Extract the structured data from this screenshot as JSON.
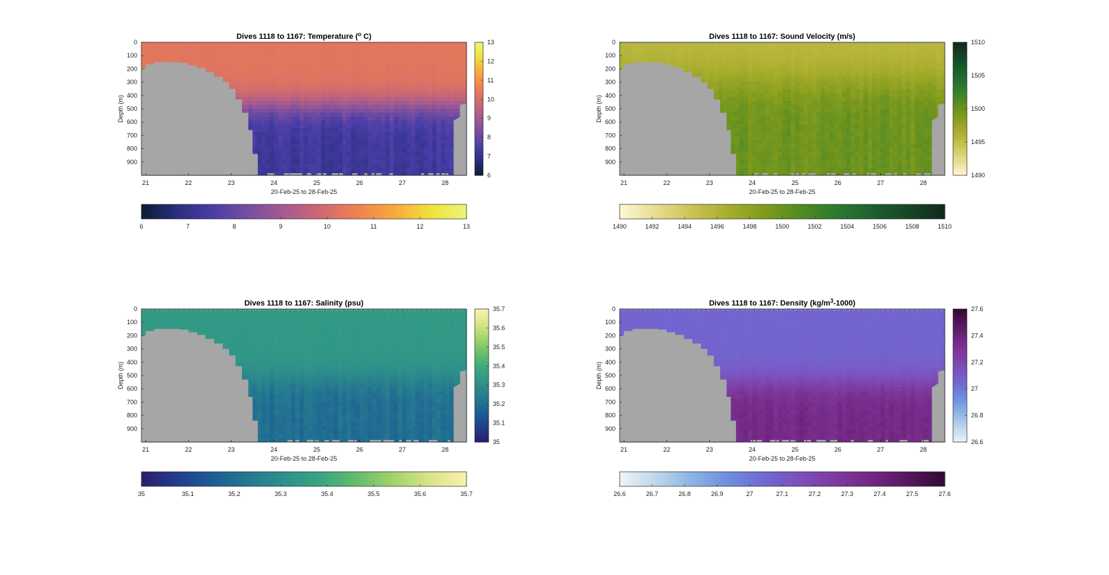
{
  "figure": {
    "background": "#ffffff",
    "bathymetry_color": "#a6a6a6"
  },
  "chart_data": [
    {
      "type": "heatmap",
      "title": "Dives 1118 to 1167: Temperature (° C)",
      "title_parts": [
        "Dives 1118 to 1167: Temperature (",
        "o",
        " C)"
      ],
      "xlabel": "20-Feb-25 to 28-Feb-25",
      "ylabel": "Depth (m)",
      "x_ticks": [
        "21",
        "22",
        "23",
        "24",
        "25",
        "26",
        "27",
        "28"
      ],
      "y_ticks": [
        "0",
        "100",
        "200",
        "300",
        "400",
        "500",
        "600",
        "700",
        "800",
        "900"
      ],
      "xlim": [
        20.9,
        28.5
      ],
      "ylim": [
        0,
        1000
      ],
      "y_reversed": true,
      "colorbar": {
        "range": [
          6,
          13
        ],
        "side_ticks": [
          "6",
          "7",
          "8",
          "9",
          "10",
          "11",
          "12",
          "13"
        ],
        "bottom_ticks": [
          "6",
          "7",
          "8",
          "9",
          "10",
          "11",
          "12",
          "13"
        ],
        "colors": [
          "#0b1c33",
          "#2a2f80",
          "#4a3ea7",
          "#7a4fa0",
          "#a85b8f",
          "#d16a6f",
          "#f0824f",
          "#f9a83d",
          "#f0e23a",
          "#eaf57a"
        ]
      },
      "surface_value": 10.3,
      "deep_value": 7.3,
      "cline_depth": 480,
      "cline_width": 250
    },
    {
      "type": "heatmap",
      "title": "Dives 1118 to 1167: Sound Velocity (m/s)",
      "title_parts": [
        "Dives 1118 to 1167: Sound Velocity (m/s)",
        "",
        ""
      ],
      "xlabel": "20-Feb-25 to 28-Feb-25",
      "ylabel": "Depth (m)",
      "x_ticks": [
        "21",
        "22",
        "23",
        "24",
        "25",
        "26",
        "27",
        "28"
      ],
      "y_ticks": [
        "0",
        "100",
        "200",
        "300",
        "400",
        "500",
        "600",
        "700",
        "800",
        "900"
      ],
      "xlim": [
        20.9,
        28.5
      ],
      "ylim": [
        0,
        1000
      ],
      "y_reversed": true,
      "colorbar": {
        "range": [
          1490,
          1510
        ],
        "side_ticks": [
          "1490",
          "1495",
          "1500",
          "1505",
          "1510"
        ],
        "bottom_ticks": [
          "1490",
          "1492",
          "1494",
          "1496",
          "1498",
          "1500",
          "1502",
          "1504",
          "1506",
          "1508",
          "1510"
        ],
        "colors": [
          "#fdf7d5",
          "#e8dc90",
          "#cbc355",
          "#a8ad2c",
          "#809b1d",
          "#528a22",
          "#2b7a2f",
          "#1c6130",
          "#174627",
          "#11291a"
        ]
      },
      "surface_value": 1495.5,
      "deep_value": 1499.8,
      "cline_depth": 300,
      "cline_width": 350
    },
    {
      "type": "heatmap",
      "title": "Dives 1118 to 1167: Salinity (psu)",
      "title_parts": [
        "Dives 1118 to 1167: Salinity (psu)",
        "",
        ""
      ],
      "xlabel": "20-Feb-25 to 28-Feb-25",
      "ylabel": "Depth (m)",
      "x_ticks": [
        "21",
        "22",
        "23",
        "24",
        "25",
        "26",
        "27",
        "28"
      ],
      "y_ticks": [
        "0",
        "100",
        "200",
        "300",
        "400",
        "500",
        "600",
        "700",
        "800",
        "900"
      ],
      "xlim": [
        20.9,
        28.5
      ],
      "ylim": [
        0,
        1000
      ],
      "y_reversed": true,
      "colorbar": {
        "range": [
          35,
          35.7
        ],
        "side_ticks": [
          "35",
          "35.1",
          "35.2",
          "35.3",
          "35.4",
          "35.5",
          "35.6",
          "35.7"
        ],
        "bottom_ticks": [
          "35",
          "35.1",
          "35.2",
          "35.3",
          "35.4",
          "35.5",
          "35.6",
          "35.7"
        ],
        "colors": [
          "#2b1c6b",
          "#233d8e",
          "#1d5e94",
          "#257a90",
          "#2e918a",
          "#3aa67e",
          "#66bd6c",
          "#a3d46a",
          "#d8e58a",
          "#faf0b0"
        ]
      },
      "surface_value": 35.34,
      "deep_value": 35.2,
      "cline_depth": 530,
      "cline_width": 250
    },
    {
      "type": "heatmap",
      "title": "Dives 1118 to 1167: Density (kg/m³-1000)",
      "title_parts": [
        "Dives 1118 to 1167: Density (kg/m",
        "3",
        "-1000)"
      ],
      "xlabel": "20-Feb-25 to 28-Feb-25",
      "ylabel": "Depth (m)",
      "x_ticks": [
        "21",
        "22",
        "23",
        "24",
        "25",
        "26",
        "27",
        "28"
      ],
      "y_ticks": [
        "0",
        "100",
        "200",
        "300",
        "400",
        "500",
        "600",
        "700",
        "800",
        "900"
      ],
      "xlim": [
        20.9,
        28.5
      ],
      "ylim": [
        0,
        1000
      ],
      "y_reversed": true,
      "colorbar": {
        "range": [
          26.6,
          27.6
        ],
        "side_ticks": [
          "26.6",
          "26.8",
          "27",
          "27.2",
          "27.4",
          "27.6"
        ],
        "bottom_ticks": [
          "26.6",
          "26.7",
          "26.8",
          "26.9",
          "27",
          "27.1",
          "27.2",
          "27.3",
          "27.4",
          "27.5",
          "27.6"
        ],
        "colors": [
          "#eef4f8",
          "#bcd7ea",
          "#8bb4e4",
          "#6f8edf",
          "#7168d2",
          "#7d4fbb",
          "#7e399e",
          "#722681",
          "#571660",
          "#300a30"
        ]
      },
      "surface_value": 27.06,
      "deep_value": 27.36,
      "cline_depth": 560,
      "cline_width": 250
    }
  ],
  "bathymetry": {
    "left_profile": [
      {
        "day": 20.9,
        "depth": 200
      },
      {
        "day": 21.0,
        "depth": 165
      },
      {
        "day": 21.2,
        "depth": 150
      },
      {
        "day": 21.5,
        "depth": 150
      },
      {
        "day": 21.8,
        "depth": 155
      },
      {
        "day": 22.0,
        "depth": 175
      },
      {
        "day": 22.2,
        "depth": 195
      },
      {
        "day": 22.4,
        "depth": 225
      },
      {
        "day": 22.6,
        "depth": 260
      },
      {
        "day": 22.8,
        "depth": 300
      },
      {
        "day": 22.95,
        "depth": 350
      },
      {
        "day": 23.1,
        "depth": 430
      },
      {
        "day": 23.25,
        "depth": 530
      },
      {
        "day": 23.4,
        "depth": 660
      },
      {
        "day": 23.5,
        "depth": 840
      },
      {
        "day": 23.62,
        "depth": 1000
      }
    ],
    "right_profile": [
      {
        "day": 28.2,
        "depth": 1000
      },
      {
        "day": 28.2,
        "depth": 590
      },
      {
        "day": 28.35,
        "depth": 560
      },
      {
        "day": 28.35,
        "depth": 470
      },
      {
        "day": 28.5,
        "depth": 460
      }
    ]
  }
}
